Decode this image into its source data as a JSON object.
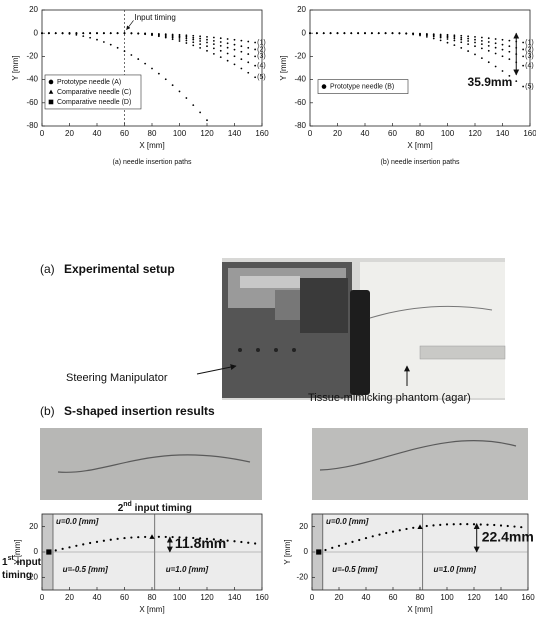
{
  "chart_data": [
    {
      "type": "scatter",
      "caption": "(a) needle insertion paths",
      "xlabel": "X [mm]",
      "ylabel": "Y [mm]",
      "xlim": [
        0,
        160
      ],
      "ylim": [
        -80,
        20
      ],
      "xticks": [
        0,
        20,
        40,
        60,
        80,
        100,
        120,
        140,
        160
      ],
      "yticks": [
        -80,
        -60,
        -40,
        -20,
        0,
        20
      ],
      "color": "#000000",
      "input_timing": {
        "label": "Input timing",
        "x": 60
      },
      "x": [
        0,
        5,
        10,
        15,
        20,
        25,
        30,
        35,
        40,
        45,
        50,
        55,
        60,
        65,
        70,
        75,
        80,
        85,
        90,
        95,
        100,
        105,
        110,
        115,
        120,
        125,
        130,
        135,
        140,
        145,
        150,
        155
      ],
      "series": [
        {
          "label": "(1)",
          "values": [
            0,
            0,
            0,
            0,
            0,
            0,
            0,
            0,
            0,
            0,
            0,
            0,
            0,
            0,
            -0.1,
            -0.2,
            -0.4,
            -0.6,
            -0.8,
            -1.1,
            -1.4,
            -1.8,
            -2.2,
            -2.7,
            -3.2,
            -3.7,
            -4.3,
            -5.0,
            -5.7,
            -6.4,
            -7.2,
            -8
          ]
        },
        {
          "label": "(2)",
          "values": [
            0,
            0,
            0,
            0,
            0,
            0,
            0,
            0,
            0,
            0,
            0,
            0,
            0,
            0,
            -0.2,
            -0.3,
            -0.6,
            -1.0,
            -1.4,
            -1.9,
            -2.5,
            -3.1,
            -3.9,
            -4.7,
            -5.6,
            -6.6,
            -7.6,
            -8.7,
            -9.9,
            -11.2,
            -12.6,
            -14
          ]
        },
        {
          "label": "(3)",
          "values": [
            0,
            0,
            0,
            0,
            0,
            0,
            0,
            0,
            0,
            0,
            0,
            0,
            0,
            -0.1,
            -0.2,
            -0.5,
            -0.9,
            -1.4,
            -2.0,
            -2.7,
            -3.5,
            -4.5,
            -5.5,
            -6.7,
            -8.0,
            -9.4,
            -10.9,
            -12.5,
            -14.2,
            -16.0,
            -18.0,
            -20
          ]
        },
        {
          "label": "(4)",
          "values": [
            0,
            0,
            0,
            0,
            0,
            0,
            0,
            0,
            0,
            0,
            0,
            0,
            0,
            -0.1,
            -0.3,
            -0.7,
            -1.2,
            -1.9,
            -2.8,
            -3.8,
            -5.0,
            -6.3,
            -7.8,
            -9.4,
            -11.2,
            -13.1,
            -15.2,
            -17.5,
            -19.9,
            -22.4,
            -25.1,
            -28
          ]
        },
        {
          "label": "(5)",
          "values": [
            0,
            0,
            0,
            0,
            0,
            0,
            0,
            0,
            0,
            0,
            0,
            0,
            0,
            -0.1,
            -0.4,
            -0.9,
            -1.7,
            -2.6,
            -3.8,
            -5.2,
            -6.7,
            -8.5,
            -10.5,
            -12.7,
            -15.2,
            -17.8,
            -20.6,
            -23.7,
            -26.9,
            -30.4,
            -34.1,
            -38
          ]
        },
        {
          "values": [
            0,
            0,
            0,
            -0.2,
            -0.6,
            -1.4,
            -2.5,
            -3.9,
            -5.6,
            -7.6,
            -9.9,
            -12.6,
            -15.5,
            -18.8,
            -22.3,
            -26.2,
            -30.4,
            -34.9,
            -39.7,
            -44.8,
            -50.2,
            -55.9,
            -62.0,
            -68.3,
            -75,
            null,
            null,
            null,
            null,
            null,
            null,
            null
          ]
        }
      ],
      "legend": [
        {
          "name": "Prototype needle (A)",
          "marker": "circle"
        },
        {
          "name": "Comparative needle (C)",
          "marker": "triangle"
        },
        {
          "name": "Comparative needle (D)",
          "marker": "square"
        }
      ]
    },
    {
      "type": "scatter",
      "caption": "(b) needle insertion paths",
      "xlabel": "X [mm]",
      "ylabel": "Y [mm]",
      "xlim": [
        0,
        160
      ],
      "ylim": [
        -80,
        20
      ],
      "xticks": [
        0,
        20,
        40,
        60,
        80,
        100,
        120,
        140,
        160
      ],
      "yticks": [
        -80,
        -60,
        -40,
        -20,
        0,
        20
      ],
      "color": "#000000",
      "x": [
        0,
        5,
        10,
        15,
        20,
        25,
        30,
        35,
        40,
        45,
        50,
        55,
        60,
        65,
        70,
        75,
        80,
        85,
        90,
        95,
        100,
        105,
        110,
        115,
        120,
        125,
        130,
        135,
        140,
        145,
        150,
        155
      ],
      "series": [
        {
          "label": "(1)",
          "values": [
            0,
            0,
            0,
            0,
            0,
            0,
            0,
            0,
            0,
            0,
            0,
            0,
            0,
            0,
            -0.1,
            -0.2,
            -0.4,
            -0.6,
            -0.8,
            -1.1,
            -1.4,
            -1.8,
            -2.2,
            -2.7,
            -3.2,
            -3.7,
            -4.3,
            -5.0,
            -5.7,
            -6.4,
            -7.2,
            -8
          ]
        },
        {
          "label": "(2)",
          "values": [
            0,
            0,
            0,
            0,
            0,
            0,
            0,
            0,
            0,
            0,
            0,
            0,
            0,
            0,
            -0.2,
            -0.3,
            -0.6,
            -1.0,
            -1.4,
            -1.9,
            -2.5,
            -3.1,
            -3.9,
            -4.7,
            -5.6,
            -6.6,
            -7.6,
            -8.7,
            -9.9,
            -11.2,
            -12.6,
            -14
          ]
        },
        {
          "label": "(3)",
          "values": [
            0,
            0,
            0,
            0,
            0,
            0,
            0,
            0,
            0,
            0,
            0,
            0,
            0,
            -0.1,
            -0.2,
            -0.5,
            -0.9,
            -1.4,
            -2.0,
            -2.7,
            -3.5,
            -4.5,
            -5.5,
            -6.7,
            -8.0,
            -9.4,
            -10.9,
            -12.5,
            -14.2,
            -16.0,
            -18.0,
            -20
          ]
        },
        {
          "label": "(4)",
          "values": [
            0,
            0,
            0,
            0,
            0,
            0,
            0,
            0,
            0,
            0,
            0,
            0,
            0,
            -0.1,
            -0.3,
            -0.7,
            -1.2,
            -1.9,
            -2.8,
            -3.8,
            -5.0,
            -6.3,
            -7.8,
            -9.4,
            -11.2,
            -13.1,
            -15.2,
            -17.5,
            -19.9,
            -22.4,
            -25.1,
            -28
          ]
        },
        {
          "label": "(5)",
          "values": [
            0,
            0,
            0,
            0,
            0,
            0,
            0,
            0,
            0,
            0,
            0,
            0,
            0,
            -0.1,
            -0.5,
            -1.1,
            -2.0,
            -3.2,
            -4.6,
            -6.2,
            -8.2,
            -10.3,
            -12.7,
            -15.4,
            -18.3,
            -21.5,
            -25.0,
            -28.7,
            -32.6,
            -36.8,
            -41.3,
            -46
          ]
        }
      ],
      "legend": [
        {
          "name": "Prototype needle (B)",
          "marker": "circle"
        }
      ],
      "measure": {
        "label": "35.9mm",
        "x": 150,
        "from": 0,
        "to": -35.9
      }
    },
    {
      "type": "scatter",
      "xlabel": "X [mm]",
      "ylabel": "Y [mm]",
      "xlim": [
        0,
        160
      ],
      "ylim": [
        -30,
        30
      ],
      "xticks": [
        0,
        20,
        40,
        60,
        80,
        100,
        120,
        140,
        160
      ],
      "yticks": [
        -20,
        0,
        20
      ],
      "color": "#000000",
      "background": "#ececec",
      "shade_color": "#c8c8c8",
      "input_lines": [
        8,
        82
      ],
      "x": [
        5,
        10,
        15,
        20,
        25,
        30,
        35,
        40,
        45,
        50,
        55,
        60,
        65,
        70,
        75,
        80,
        85,
        90,
        95,
        100,
        105,
        110,
        115,
        120,
        125,
        130,
        135,
        140,
        145,
        150,
        155
      ],
      "series": [
        {
          "values": [
            0,
            1.3,
            2.5,
            3.7,
            4.9,
            6.0,
            7.1,
            8.0,
            8.9,
            9.7,
            10.4,
            11.0,
            11.4,
            11.7,
            11.9,
            12,
            12.0,
            11.9,
            11.8,
            11.6,
            11.4,
            11.1,
            10.8,
            10.4,
            10.0,
            9.5,
            9.0,
            8.5,
            7.9,
            7.3,
            6.7
          ]
        }
      ],
      "input_points": {
        "x": [
          5,
          80
        ],
        "y": [
          0,
          12
        ],
        "markers": [
          "square",
          "triangle"
        ]
      },
      "region_labels": [
        "u=0.0 [mm]",
        "u=-0.5 [mm]",
        "u=1.0 [mm]"
      ],
      "timing_labels": [
        {
          "num": "2",
          "sup": "nd",
          "rest": " input timing"
        },
        {
          "num": "1",
          "sup": "st",
          "rest": " input",
          "line2": "timing"
        }
      ],
      "measure": {
        "label": "11.8mm",
        "x": 93,
        "from": 0,
        "to": 11.8
      }
    },
    {
      "type": "scatter",
      "xlabel": "X [mm]",
      "ylabel": "Y [mm]",
      "xlim": [
        0,
        160
      ],
      "ylim": [
        -30,
        30
      ],
      "xticks": [
        0,
        20,
        40,
        60,
        80,
        100,
        120,
        140,
        160
      ],
      "yticks": [
        -20,
        0,
        20
      ],
      "color": "#000000",
      "background": "#ececec",
      "shade_color": "#c8c8c8",
      "input_lines": [
        8,
        82
      ],
      "x": [
        5,
        10,
        15,
        20,
        25,
        30,
        35,
        40,
        45,
        50,
        55,
        60,
        65,
        70,
        75,
        80,
        85,
        90,
        95,
        100,
        105,
        110,
        115,
        120,
        125,
        130,
        135,
        140,
        145,
        150,
        155
      ],
      "series": [
        {
          "values": [
            0,
            1.6,
            3.3,
            4.9,
            6.5,
            8.0,
            9.5,
            11.0,
            12.4,
            13.7,
            15.0,
            16.1,
            17.2,
            18.2,
            19.1,
            19.8,
            20.5,
            21.0,
            21.4,
            21.8,
            21.9,
            22,
            22.0,
            21.9,
            21.7,
            21.5,
            21.3,
            20.9,
            20.5,
            20.1,
            19.6
          ]
        }
      ],
      "input_points": {
        "x": [
          5,
          80
        ],
        "y": [
          0,
          19.8
        ],
        "markers": [
          "square",
          "triangle"
        ]
      },
      "region_labels": [
        "u=0.0 [mm]",
        "u=-0.5 [mm]",
        "u=1.0 [mm]"
      ],
      "measure": {
        "label": "22.4mm",
        "x": 122,
        "from": 0,
        "to": 22.4
      }
    }
  ],
  "panels": {
    "setup_title": {
      "letter": "(a)",
      "text": "Experimental setup"
    },
    "manipulator_label": "Steering Manipulator",
    "phantom_label": "Tissue-mimicking phantom (agar)",
    "results_title": {
      "letter": "(b)",
      "text": "S-shaped insertion results"
    }
  }
}
